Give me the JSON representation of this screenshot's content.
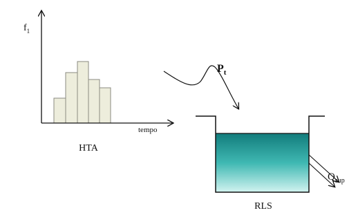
{
  "histogram": {
    "y_label": {
      "main": "f",
      "sub": "1"
    },
    "x_label": "tempo",
    "caption": "HTA"
  },
  "inflow": {
    "main": "P",
    "sub": "t"
  },
  "reservoir": {
    "caption": "RLS",
    "outflow": {
      "main": "Q",
      "sub": "sup"
    }
  }
}
